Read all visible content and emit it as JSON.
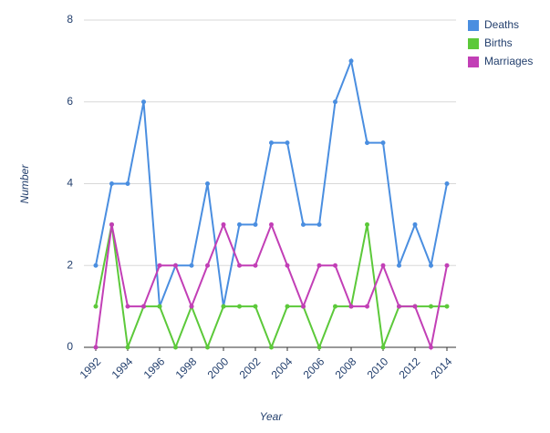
{
  "chart_data": {
    "type": "line",
    "x_label": "Year",
    "y_label": "Number",
    "x": [
      1992,
      1993,
      1994,
      1995,
      1996,
      1997,
      1998,
      1999,
      2000,
      2001,
      2002,
      2003,
      2004,
      2005,
      2006,
      2007,
      2008,
      2009,
      2010,
      2011,
      2012,
      2013,
      2014
    ],
    "series": [
      {
        "name": "Deaths",
        "color": "#4a8ee0",
        "values": [
          2,
          4,
          4,
          6,
          1,
          2,
          2,
          4,
          1,
          3,
          3,
          5,
          5,
          3,
          3,
          6,
          7,
          5,
          5,
          2,
          3,
          2,
          4
        ]
      },
      {
        "name": "Births",
        "color": "#5cc93a",
        "values": [
          1,
          3,
          0,
          1,
          1,
          0,
          1,
          0,
          1,
          1,
          1,
          0,
          1,
          1,
          0,
          1,
          1,
          3,
          0,
          1,
          1,
          1,
          1
        ]
      },
      {
        "name": "Marriages",
        "color": "#c23fb6",
        "values": [
          0,
          3,
          1,
          1,
          2,
          2,
          1,
          2,
          3,
          2,
          2,
          3,
          2,
          1,
          2,
          2,
          1,
          1,
          2,
          1,
          1,
          0,
          2
        ]
      }
    ],
    "xlim": [
      1992,
      2014
    ],
    "xticks": [
      1992,
      1994,
      1996,
      1998,
      2000,
      2002,
      2004,
      2006,
      2008,
      2010,
      2012,
      2014
    ],
    "ylim": [
      0,
      8
    ],
    "yticks": [
      0,
      2,
      4,
      6,
      8
    ],
    "grid": true,
    "legend": "top-right"
  }
}
